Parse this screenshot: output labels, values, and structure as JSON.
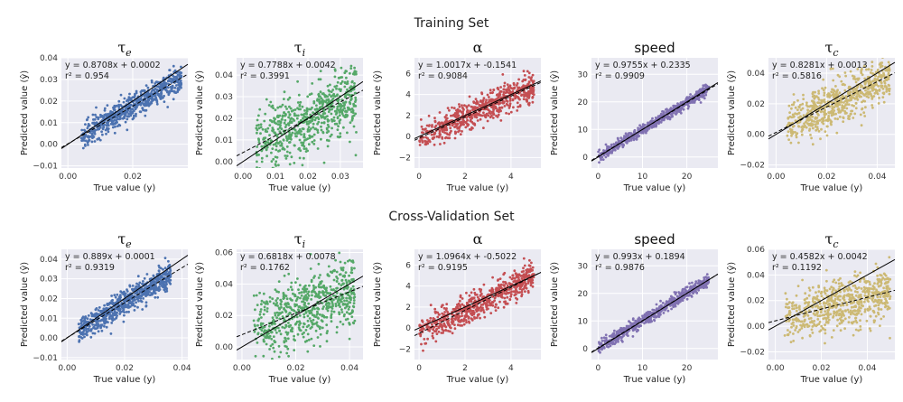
{
  "figure": {
    "row_titles": [
      "Training Set",
      "Cross-Validation Set"
    ]
  },
  "chart_data": [
    {
      "type": "scatter",
      "row": 0,
      "title": "τ",
      "title_sub": "e",
      "color": "#4c72b0",
      "xlabel": "True value (y)",
      "ylabel": "Predicted value (ŷ)",
      "xlim": [
        -0.002,
        0.037
      ],
      "ylim": [
        -0.011,
        0.04
      ],
      "xticks": [
        0.0,
        0.02
      ],
      "yticks": [
        -0.01,
        0.0,
        0.01,
        0.02,
        0.03,
        0.04
      ],
      "xtick_labels": [
        "0.00",
        "0.02"
      ],
      "ytick_labels": [
        "−0.01",
        "0.00",
        "0.01",
        "0.02",
        "0.03",
        "0.04"
      ],
      "cloud": {
        "xmin": 0.004,
        "xmax": 0.035,
        "slope": 0.8708,
        "intercept": 0.0002,
        "noise": 0.0028
      },
      "fit_line": {
        "slope": 0.8708,
        "intercept": 0.0002
      },
      "annotation": {
        "equation": "y = 0.8708x + 0.0002",
        "r2": "r² = 0.954"
      }
    },
    {
      "type": "scatter",
      "row": 0,
      "title": "τ",
      "title_sub": "i",
      "color": "#55a868",
      "xlabel": "True value (y)",
      "ylabel": "Predicted value (ŷ)",
      "xlim": [
        -0.002,
        0.037
      ],
      "ylim": [
        -0.003,
        0.048
      ],
      "xticks": [
        0.0,
        0.01,
        0.02,
        0.03
      ],
      "yticks": [
        0.0,
        0.01,
        0.02,
        0.03,
        0.04
      ],
      "xtick_labels": [
        "0.00",
        "0.01",
        "0.02",
        "0.03"
      ],
      "ytick_labels": [
        "0.00",
        "0.01",
        "0.02",
        "0.03",
        "0.04"
      ],
      "cloud": {
        "xmin": 0.004,
        "xmax": 0.035,
        "slope": 0.7788,
        "intercept": 0.0042,
        "noise": 0.008
      },
      "fit_line": {
        "slope": 0.7788,
        "intercept": 0.0042
      },
      "annotation": {
        "equation": "y = 0.7788x + 0.0042",
        "r2": "r² = 0.3991"
      }
    },
    {
      "type": "scatter",
      "row": 0,
      "title": "α",
      "title_sub": "",
      "color": "#c44e52",
      "xlabel": "True value (y)",
      "ylabel": "Predicted value (ŷ)",
      "xlim": [
        -0.2,
        5.3
      ],
      "ylim": [
        -3,
        7.5
      ],
      "xticks": [
        0,
        2,
        4
      ],
      "yticks": [
        -2,
        0,
        2,
        4,
        6
      ],
      "xtick_labels": [
        "0",
        "2",
        "4"
      ],
      "ytick_labels": [
        "−2",
        "0",
        "2",
        "4",
        "6"
      ],
      "cloud": {
        "xmin": 0.0,
        "xmax": 5.0,
        "slope": 1.0017,
        "intercept": -0.1541,
        "noise": 0.7
      },
      "fit_line": {
        "slope": 1.0017,
        "intercept": -0.1541
      },
      "annotation": {
        "equation": "y = 1.0017x + -0.1541",
        "r2": "r² = 0.9084"
      }
    },
    {
      "type": "scatter",
      "row": 0,
      "title": "speed",
      "title_sub": "",
      "color": "#8172b2",
      "xlabel": "True value (y)",
      "ylabel": "Predicted value (ŷ)",
      "xlim": [
        -1.5,
        27
      ],
      "ylim": [
        -4,
        36
      ],
      "xticks": [
        0,
        10,
        20
      ],
      "yticks": [
        0,
        10,
        20,
        30
      ],
      "xtick_labels": [
        "0",
        "10",
        "20"
      ],
      "ytick_labels": [
        "0",
        "10",
        "20",
        "30"
      ],
      "cloud": {
        "xmin": 0.0,
        "xmax": 25.0,
        "slope": 0.9755,
        "intercept": 0.2335,
        "noise": 1.0
      },
      "fit_line": {
        "slope": 0.9755,
        "intercept": 0.2335
      },
      "annotation": {
        "equation": "y = 0.9755x + 0.2335",
        "r2": "r² = 0.9909"
      }
    },
    {
      "type": "scatter",
      "row": 0,
      "title": "τ",
      "title_sub": "c",
      "color": "#ccb974",
      "xlabel": "True value (y)",
      "ylabel": "Predicted value (ŷ)",
      "xlim": [
        -0.003,
        0.047
      ],
      "ylim": [
        -0.022,
        0.05
      ],
      "xticks": [
        0.0,
        0.02,
        0.04
      ],
      "yticks": [
        -0.02,
        0.0,
        0.02,
        0.04
      ],
      "xtick_labels": [
        "0.00",
        "0.02",
        "0.04"
      ],
      "ytick_labels": [
        "−0.02",
        "0.00",
        "0.02",
        "0.04"
      ],
      "cloud": {
        "xmin": 0.004,
        "xmax": 0.045,
        "slope": 0.8281,
        "intercept": 0.0013,
        "noise": 0.007
      },
      "fit_line": {
        "slope": 0.8281,
        "intercept": 0.0013
      },
      "annotation": {
        "equation": "y = 0.8281x + 0.0013",
        "r2": "r² = 0.5816"
      }
    },
    {
      "type": "scatter",
      "row": 1,
      "title": "τ",
      "title_sub": "e",
      "color": "#4c72b0",
      "xlabel": "True value (y)",
      "ylabel": "Predicted value (ŷ)",
      "xlim": [
        -0.002,
        0.042
      ],
      "ylim": [
        -0.011,
        0.045
      ],
      "xticks": [
        0.0,
        0.02,
        0.04
      ],
      "yticks": [
        -0.01,
        0.0,
        0.01,
        0.02,
        0.03,
        0.04
      ],
      "xtick_labels": [
        "0.00",
        "0.02",
        "0.04"
      ],
      "ytick_labels": [
        "−0.01",
        "0.00",
        "0.01",
        "0.02",
        "0.03",
        "0.04"
      ],
      "cloud": {
        "xmin": 0.004,
        "xmax": 0.036,
        "slope": 0.889,
        "intercept": 0.0001,
        "noise": 0.0032
      },
      "fit_line": {
        "slope": 0.889,
        "intercept": 0.0001
      },
      "annotation": {
        "equation": "y = 0.889x + 0.0001",
        "r2": "r² = 0.9319"
      }
    },
    {
      "type": "scatter",
      "row": 1,
      "title": "τ",
      "title_sub": "i",
      "color": "#55a868",
      "xlabel": "True value (y)",
      "ylabel": "Predicted value (ŷ)",
      "xlim": [
        -0.002,
        0.045
      ],
      "ylim": [
        -0.008,
        0.062
      ],
      "xticks": [
        0.0,
        0.02,
        0.04
      ],
      "yticks": [
        0.0,
        0.02,
        0.04,
        0.06
      ],
      "xtick_labels": [
        "0.00",
        "0.02",
        "0.04"
      ],
      "ytick_labels": [
        "0.00",
        "0.02",
        "0.04",
        "0.06"
      ],
      "cloud": {
        "xmin": 0.004,
        "xmax": 0.042,
        "slope": 0.6818,
        "intercept": 0.0078,
        "noise": 0.011
      },
      "fit_line": {
        "slope": 0.6818,
        "intercept": 0.0078
      },
      "annotation": {
        "equation": "y = 0.6818x + 0.0078",
        "r2": "r² = 0.1762"
      }
    },
    {
      "type": "scatter",
      "row": 1,
      "title": "α",
      "title_sub": "",
      "color": "#c44e52",
      "xlabel": "True value (y)",
      "ylabel": "Predicted value (ŷ)",
      "xlim": [
        -0.2,
        5.3
      ],
      "ylim": [
        -3,
        7.5
      ],
      "xticks": [
        0,
        2,
        4
      ],
      "yticks": [
        -2,
        0,
        2,
        4,
        6
      ],
      "xtick_labels": [
        "0",
        "2",
        "4"
      ],
      "ytick_labels": [
        "−2",
        "0",
        "2",
        "4",
        "6"
      ],
      "cloud": {
        "xmin": 0.0,
        "xmax": 5.0,
        "slope": 1.0964,
        "intercept": -0.5022,
        "noise": 0.7
      },
      "fit_line": {
        "slope": 1.0964,
        "intercept": -0.5022
      },
      "annotation": {
        "equation": "y = 1.0964x + -0.5022",
        "r2": "r² = 0.9195"
      }
    },
    {
      "type": "scatter",
      "row": 1,
      "title": "speed",
      "title_sub": "",
      "color": "#8172b2",
      "xlabel": "True value (y)",
      "ylabel": "Predicted value (ŷ)",
      "xlim": [
        -1.5,
        27
      ],
      "ylim": [
        -4,
        36
      ],
      "xticks": [
        0,
        10,
        20
      ],
      "yticks": [
        0,
        10,
        20,
        30
      ],
      "xtick_labels": [
        "0",
        "10",
        "20"
      ],
      "ytick_labels": [
        "0",
        "10",
        "20",
        "30"
      ],
      "cloud": {
        "xmin": 0.0,
        "xmax": 25.0,
        "slope": 0.993,
        "intercept": 0.1894,
        "noise": 1.1
      },
      "fit_line": {
        "slope": 0.993,
        "intercept": 0.1894
      },
      "annotation": {
        "equation": "y = 0.993x + 0.1894",
        "r2": "r² = 0.9876"
      }
    },
    {
      "type": "scatter",
      "row": 1,
      "title": "τ",
      "title_sub": "c",
      "color": "#ccb974",
      "xlabel": "True value (y)",
      "ylabel": "Predicted value (ŷ)",
      "xlim": [
        -0.003,
        0.052
      ],
      "ylim": [
        -0.026,
        0.06
      ],
      "xticks": [
        0.0,
        0.02,
        0.04
      ],
      "yticks": [
        -0.02,
        0.0,
        0.02,
        0.04,
        0.06
      ],
      "xtick_labels": [
        "0.00",
        "0.02",
        "0.04"
      ],
      "ytick_labels": [
        "−0.02",
        "0.00",
        "0.02",
        "0.04",
        "0.06"
      ],
      "cloud": {
        "xmin": 0.004,
        "xmax": 0.05,
        "slope": 0.4582,
        "intercept": 0.0042,
        "noise": 0.01
      },
      "fit_line": {
        "slope": 0.4582,
        "intercept": 0.0042
      },
      "annotation": {
        "equation": "y = 0.4582x + 0.0042",
        "r2": "r² = 0.1192"
      }
    }
  ]
}
